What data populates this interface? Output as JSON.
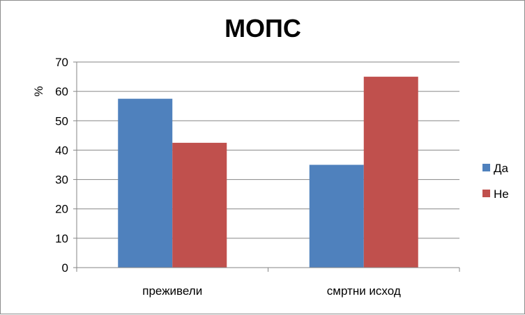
{
  "chart_data": {
    "type": "bar",
    "title": "МОПС",
    "xlabel": "",
    "ylabel": "%",
    "categories": [
      "преживели",
      "смртни исход"
    ],
    "series": [
      {
        "name": "Да",
        "values": [
          57.5,
          35
        ],
        "color": "#4f81bd"
      },
      {
        "name": "Не",
        "values": [
          42.5,
          65
        ],
        "color": "#c0504d"
      }
    ],
    "ylim": [
      0,
      70
    ],
    "yticks": [
      0,
      10,
      20,
      30,
      40,
      50,
      60,
      70
    ],
    "grid": true,
    "legend_position": "right"
  }
}
